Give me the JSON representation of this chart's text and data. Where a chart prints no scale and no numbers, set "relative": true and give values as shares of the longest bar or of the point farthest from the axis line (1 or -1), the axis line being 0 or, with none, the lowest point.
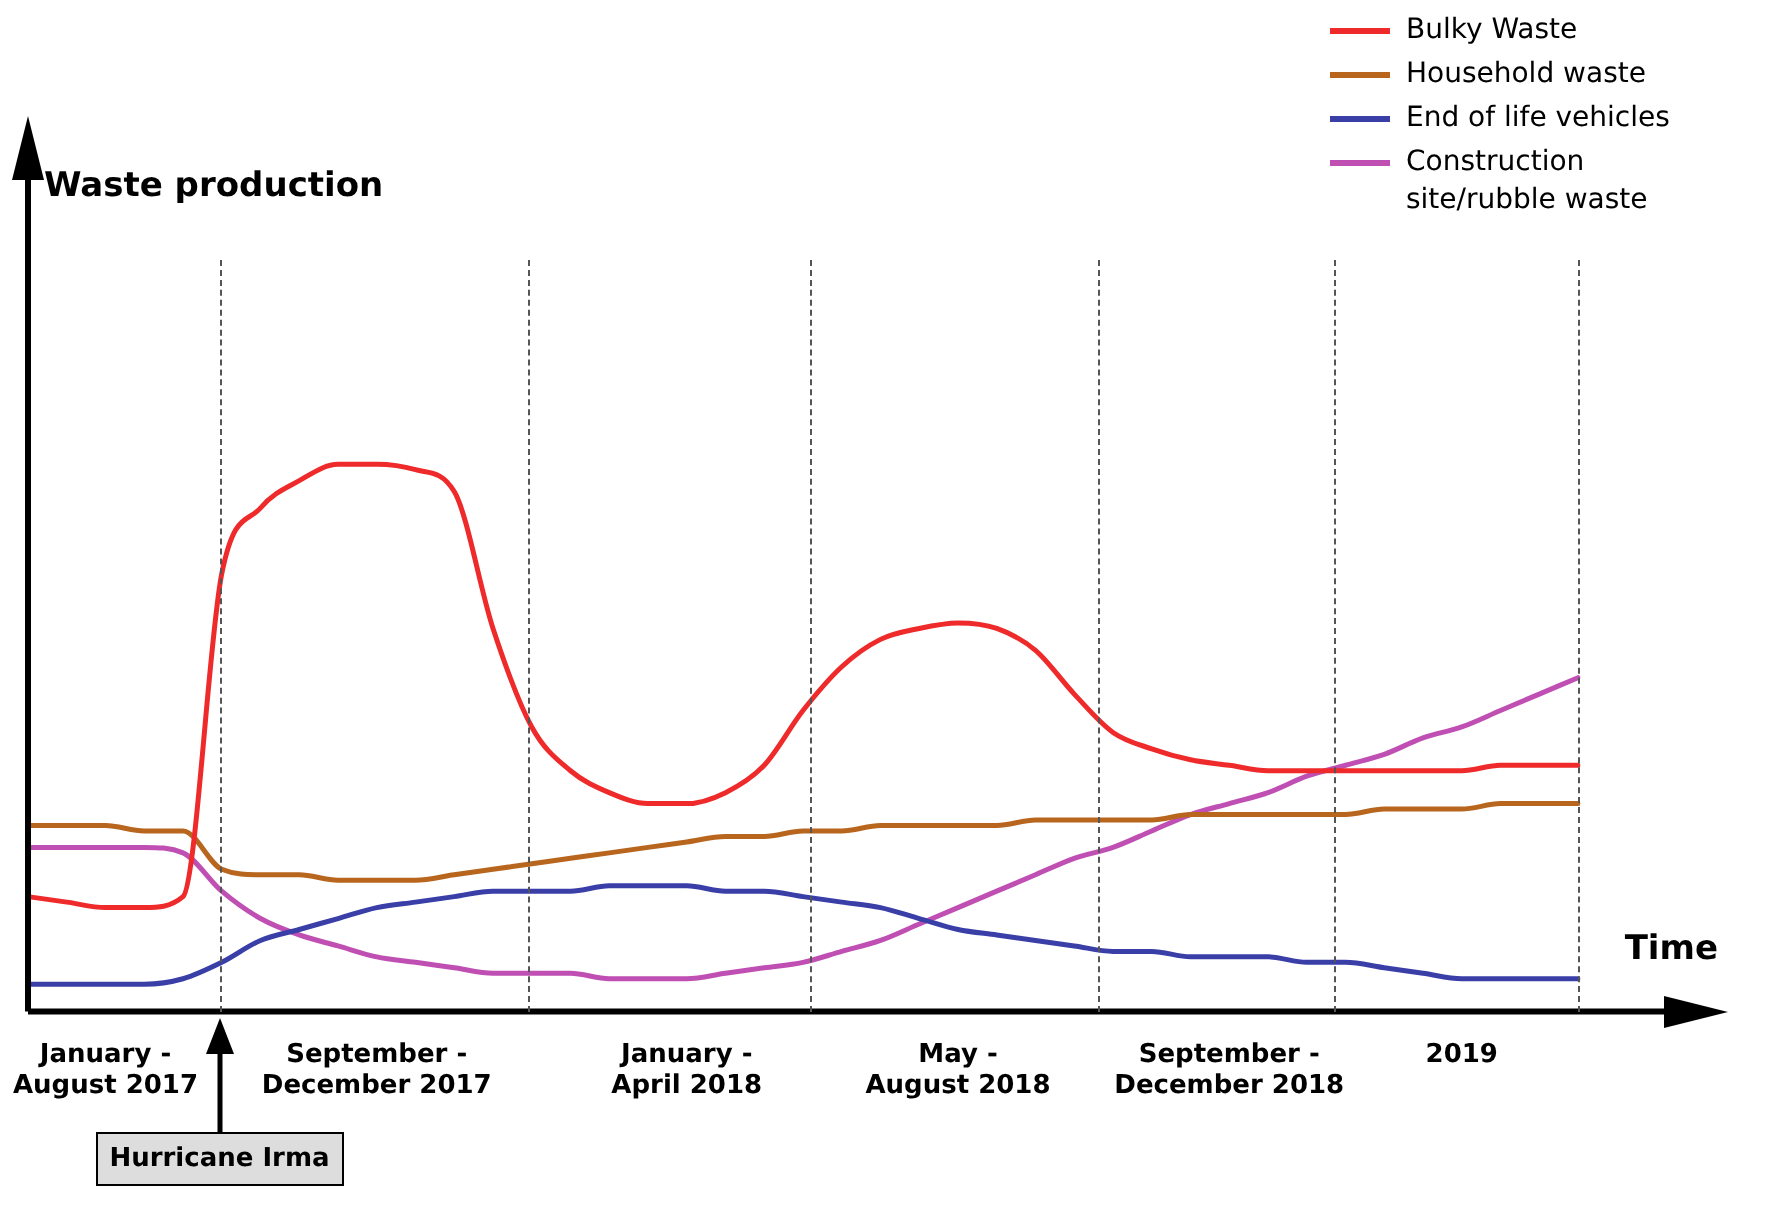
{
  "chart_data": {
    "type": "line",
    "relative": true,
    "xlabel": "Time",
    "legend": "top right",
    "marker": "none",
    "tick_labels": "x",
    "grid": "x",
    "categories": [
      null,
      null,
      "January - August 2017",
      null,
      null,
      null,
      null,
      null,
      null,
      "September - December 2017",
      null,
      null,
      null,
      null,
      null,
      null,
      null,
      "January - April 2018",
      null,
      null,
      null,
      null,
      null,
      null,
      "May - August 2018",
      null,
      null,
      null,
      null,
      null,
      null,
      "September - December 2018",
      null,
      null,
      null,
      null,
      null,
      "2019",
      null,
      null,
      null
    ],
    "annotations": [
      "Waste production",
      "Hurricane Irma"
    ],
    "series": [
      {
        "name": "Bulky Waste",
        "color": "#ee2a2a",
        "values": [
          0.21,
          0.2,
          0.19,
          0.19,
          0.21,
          0.8,
          0.92,
          0.97,
          1.0,
          1.0,
          0.99,
          0.95,
          0.7,
          0.52,
          0.44,
          0.4,
          0.38,
          0.38,
          0.4,
          0.45,
          0.55,
          0.63,
          0.68,
          0.7,
          0.71,
          0.7,
          0.66,
          0.58,
          0.51,
          0.48,
          0.46,
          0.45,
          0.44,
          0.44,
          0.44,
          0.44,
          0.44,
          0.44,
          0.45,
          0.45,
          0.45
        ]
      },
      {
        "name": "Household waste",
        "color": "#b8651e",
        "values": [
          0.34,
          0.34,
          0.34,
          0.33,
          0.33,
          0.26,
          0.25,
          0.25,
          0.24,
          0.24,
          0.24,
          0.25,
          0.26,
          0.27,
          0.28,
          0.29,
          0.3,
          0.31,
          0.32,
          0.32,
          0.33,
          0.33,
          0.34,
          0.34,
          0.34,
          0.34,
          0.35,
          0.35,
          0.35,
          0.35,
          0.36,
          0.36,
          0.36,
          0.36,
          0.36,
          0.37,
          0.37,
          0.37,
          0.38,
          0.38,
          0.38
        ]
      },
      {
        "name": "End of life vehicles",
        "color": "#3a3fa8",
        "values": [
          0.05,
          0.05,
          0.05,
          0.05,
          0.06,
          0.09,
          0.13,
          0.15,
          0.17,
          0.19,
          0.2,
          0.21,
          0.22,
          0.22,
          0.22,
          0.23,
          0.23,
          0.23,
          0.22,
          0.22,
          0.21,
          0.2,
          0.19,
          0.17,
          0.15,
          0.14,
          0.13,
          0.12,
          0.11,
          0.11,
          0.1,
          0.1,
          0.1,
          0.09,
          0.09,
          0.08,
          0.07,
          0.06,
          0.06,
          0.06,
          0.06
        ]
      },
      {
        "name": "Construction site/rubble waste",
        "color": "#c04fb4",
        "values": [
          0.3,
          0.3,
          0.3,
          0.3,
          0.29,
          0.22,
          0.17,
          0.14,
          0.12,
          0.1,
          0.09,
          0.08,
          0.07,
          0.07,
          0.07,
          0.06,
          0.06,
          0.06,
          0.07,
          0.08,
          0.09,
          0.11,
          0.13,
          0.16,
          0.19,
          0.22,
          0.25,
          0.28,
          0.3,
          0.33,
          0.36,
          0.38,
          0.4,
          0.43,
          0.45,
          0.47,
          0.5,
          0.52,
          0.55,
          0.58,
          0.61
        ]
      }
    ]
  }
}
